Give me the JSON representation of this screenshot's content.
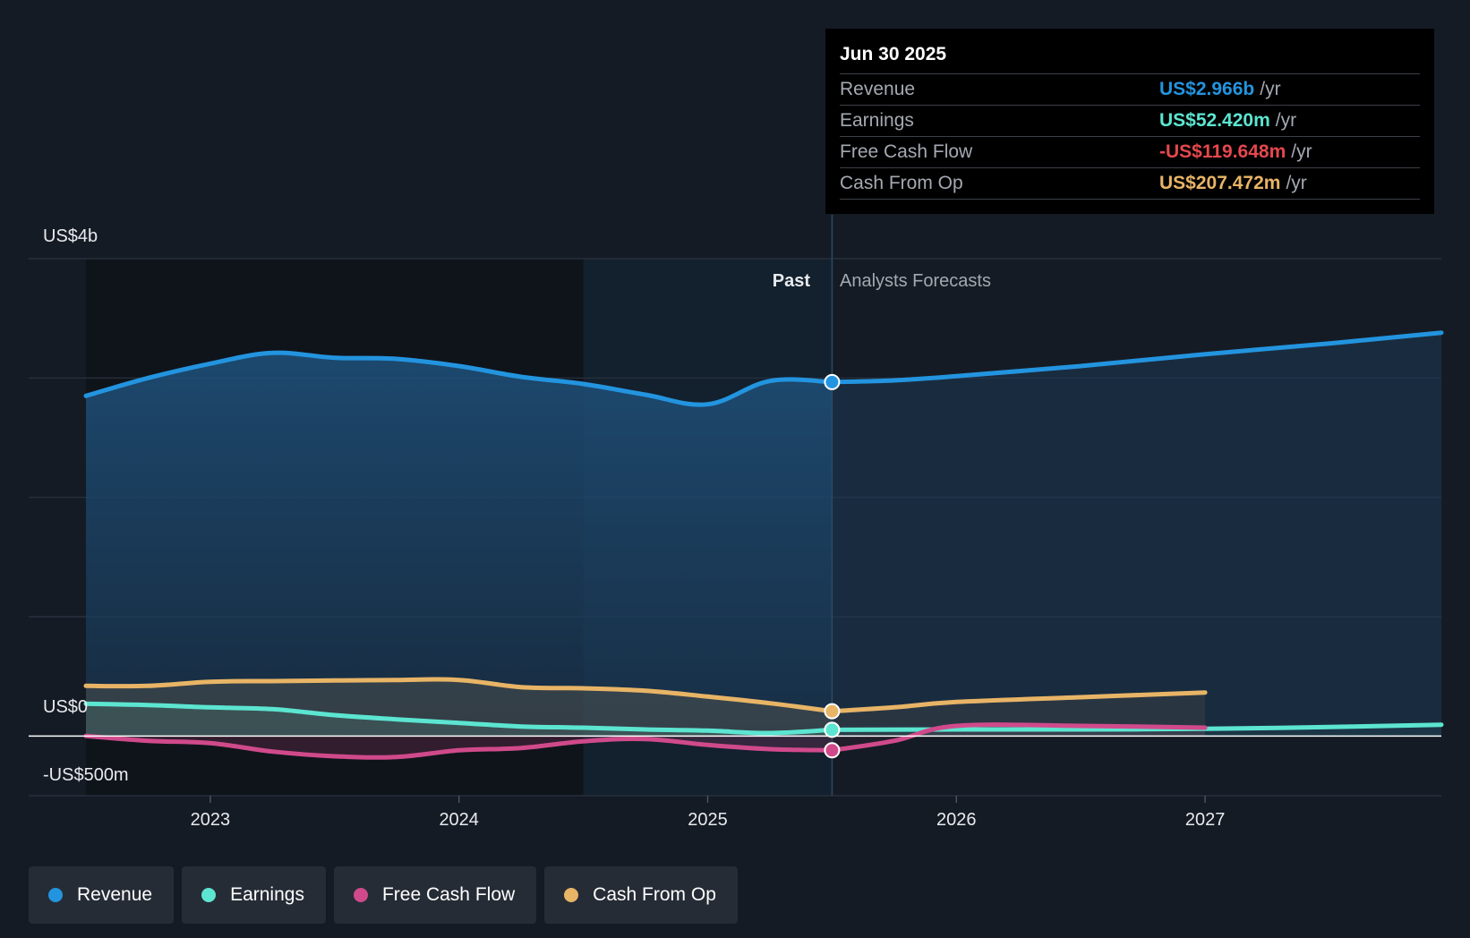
{
  "chart_data": {
    "type": "area",
    "title": "",
    "y_tick_labels": [
      "US$4b",
      "US$0",
      "-US$500m"
    ],
    "ylim": [
      -500,
      4000
    ],
    "y_unit": "US$m",
    "xlim": [
      2022.5,
      2027.95
    ],
    "x_ticks": [
      2023,
      2024,
      2025,
      2026,
      2027
    ],
    "x_tick_labels": [
      "2023",
      "2024",
      "2025",
      "2026",
      "2027"
    ],
    "past_label": "Past",
    "forecast_label": "Analysts Forecasts",
    "divider_x": 2025.5,
    "highlight_start_x": 2024.5,
    "series": [
      {
        "name": "Revenue",
        "color": "#2394df",
        "past": [
          [
            2022.5,
            2850
          ],
          [
            2022.75,
            3000
          ],
          [
            2023.0,
            3120
          ],
          [
            2023.25,
            3210
          ],
          [
            2023.5,
            3170
          ],
          [
            2023.75,
            3160
          ],
          [
            2024.0,
            3100
          ],
          [
            2024.25,
            3010
          ],
          [
            2024.5,
            2950
          ],
          [
            2024.75,
            2860
          ],
          [
            2025.0,
            2780
          ],
          [
            2025.25,
            2975
          ],
          [
            2025.5,
            2966
          ]
        ],
        "forecast": [
          [
            2025.5,
            2966
          ],
          [
            2025.75,
            2980
          ],
          [
            2026.0,
            3015
          ],
          [
            2026.5,
            3100
          ],
          [
            2027.0,
            3200
          ],
          [
            2027.5,
            3290
          ],
          [
            2027.95,
            3380
          ]
        ]
      },
      {
        "name": "Earnings",
        "color": "#5ce5d1",
        "past": [
          [
            2022.5,
            270
          ],
          [
            2022.75,
            260
          ],
          [
            2023.0,
            240
          ],
          [
            2023.25,
            225
          ],
          [
            2023.5,
            175
          ],
          [
            2023.75,
            140
          ],
          [
            2024.0,
            110
          ],
          [
            2024.25,
            80
          ],
          [
            2024.5,
            70
          ],
          [
            2024.75,
            55
          ],
          [
            2025.0,
            45
          ],
          [
            2025.25,
            25
          ],
          [
            2025.5,
            52
          ]
        ],
        "forecast": [
          [
            2025.5,
            52
          ],
          [
            2026.0,
            55
          ],
          [
            2026.5,
            55
          ],
          [
            2027.0,
            60
          ],
          [
            2027.5,
            75
          ],
          [
            2027.95,
            95
          ]
        ]
      },
      {
        "name": "Free Cash Flow",
        "color": "#d04a8b",
        "past": [
          [
            2022.5,
            0
          ],
          [
            2022.75,
            -40
          ],
          [
            2023.0,
            -60
          ],
          [
            2023.25,
            -130
          ],
          [
            2023.5,
            -170
          ],
          [
            2023.75,
            -175
          ],
          [
            2024.0,
            -120
          ],
          [
            2024.25,
            -100
          ],
          [
            2024.5,
            -45
          ],
          [
            2024.75,
            -25
          ],
          [
            2025.0,
            -75
          ],
          [
            2025.25,
            -110
          ],
          [
            2025.5,
            -119.648
          ]
        ],
        "forecast": [
          [
            2025.5,
            -119.648
          ],
          [
            2025.75,
            -40
          ],
          [
            2026.0,
            85
          ],
          [
            2026.5,
            85
          ],
          [
            2027.0,
            70
          ]
        ]
      },
      {
        "name": "Cash From Op",
        "color": "#e8b466",
        "past": [
          [
            2022.5,
            420
          ],
          [
            2022.75,
            420
          ],
          [
            2023.0,
            455
          ],
          [
            2023.25,
            460
          ],
          [
            2023.5,
            465
          ],
          [
            2023.75,
            470
          ],
          [
            2024.0,
            470
          ],
          [
            2024.25,
            410
          ],
          [
            2024.5,
            400
          ],
          [
            2024.75,
            380
          ],
          [
            2025.0,
            330
          ],
          [
            2025.25,
            275
          ],
          [
            2025.5,
            207.472
          ]
        ],
        "forecast": [
          [
            2025.5,
            207.472
          ],
          [
            2025.75,
            240
          ],
          [
            2026.0,
            285
          ],
          [
            2026.5,
            325
          ],
          [
            2027.0,
            365
          ]
        ]
      }
    ]
  },
  "tooltip": {
    "date": "Jun 30 2025",
    "unit": "/yr",
    "rows": [
      {
        "label": "Revenue",
        "value": "US$2.966b",
        "color": "#2394df"
      },
      {
        "label": "Earnings",
        "value": "US$52.420m",
        "color": "#5ce5d1"
      },
      {
        "label": "Free Cash Flow",
        "value": "-US$119.648m",
        "color": "#e5484d"
      },
      {
        "label": "Cash From Op",
        "value": "US$207.472m",
        "color": "#e8b466"
      }
    ]
  },
  "legend": [
    {
      "label": "Revenue",
      "color": "#2394df"
    },
    {
      "label": "Earnings",
      "color": "#5ce5d1"
    },
    {
      "label": "Free Cash Flow",
      "color": "#d04a8b"
    },
    {
      "label": "Cash From Op",
      "color": "#e8b466"
    }
  ]
}
